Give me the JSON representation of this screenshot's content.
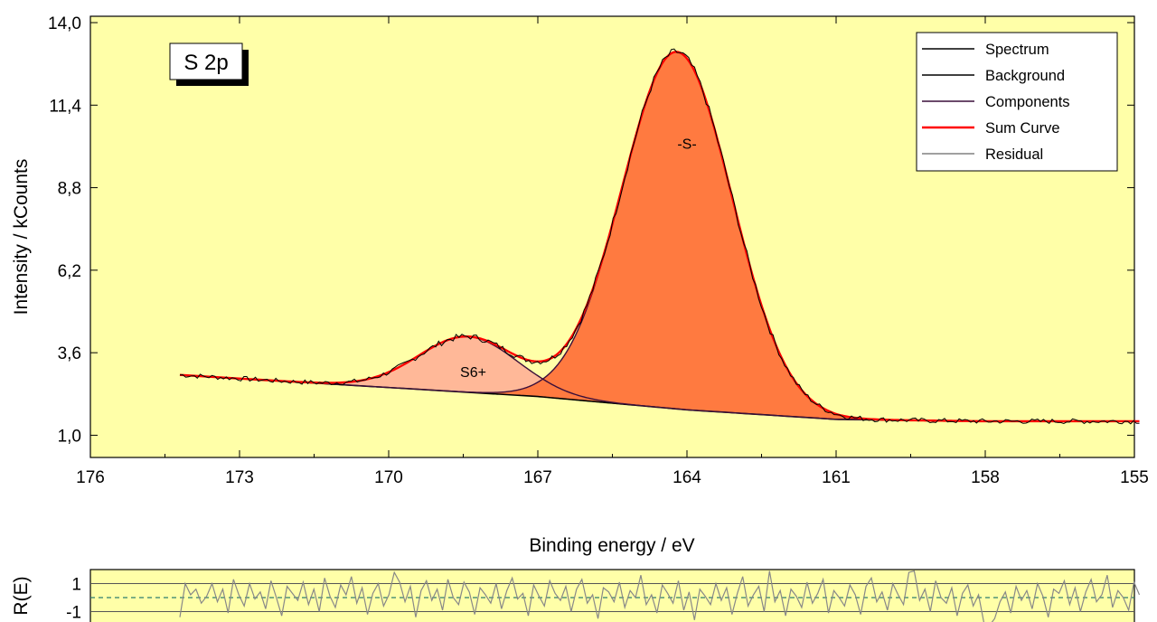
{
  "chart_data": [
    {
      "type": "line",
      "xlabel": "Binding energy / eV",
      "ylabel": "Intensity / kCounts",
      "xlim": [
        176,
        155
      ],
      "ylim": [
        0.3,
        14.2
      ],
      "x_reversed": true,
      "xticks": [
        176,
        173,
        170,
        167,
        164,
        161,
        158,
        155
      ],
      "xtick_labels": [
        "176",
        "173",
        "170",
        "167",
        "164",
        "161",
        "158",
        "155"
      ],
      "yticks": [
        1.0,
        3.6,
        6.2,
        8.8,
        11.4,
        14.0
      ],
      "ytick_labels": [
        "1,0",
        "3,6",
        "6,2",
        "8,8",
        "11,4",
        "14,0"
      ],
      "grid": false,
      "background_color": "#ffffa8",
      "legend_position": "top-right",
      "legend": [
        {
          "label": "Spectrum",
          "color": "#000000"
        },
        {
          "label": "Background",
          "color": "#000000"
        },
        {
          "label": "Components",
          "color": "#3a0f3a"
        },
        {
          "label": "Sum Curve",
          "color": "#ff0000"
        },
        {
          "label": "Residual",
          "color": "#808080"
        }
      ],
      "badge": "S 2p",
      "annotations": [
        {
          "text": "S6+",
          "x": 168.3,
          "y": 3.0
        },
        {
          "text": "-S-",
          "x": 164.0,
          "y": 10.2
        }
      ],
      "background": {
        "x_start": 174.2,
        "x_end": 154.9,
        "points": [
          [
            174.2,
            2.9
          ],
          [
            167,
            2.22
          ],
          [
            164,
            1.8
          ],
          [
            161,
            1.5
          ],
          [
            158,
            1.44
          ],
          [
            154.9,
            1.44
          ]
        ]
      },
      "components": [
        {
          "name": "S6+",
          "center": 168.4,
          "fwhm": 2.35,
          "height": 1.75,
          "fill": "#ffb898"
        },
        {
          "name": "-S-",
          "center": 164.2,
          "fwhm": 2.6,
          "height": 11.25,
          "fill": "#ff7a40"
        }
      ],
      "spectrum_noise_amplitude": 0.08
    },
    {
      "type": "line",
      "ylabel": "R(E)",
      "xlim": [
        176,
        155
      ],
      "ylim": [
        -2,
        2
      ],
      "yticks": [
        1,
        -1
      ],
      "ytick_labels": [
        "1",
        "-1"
      ],
      "x_start": 174.2,
      "x_end": 154.9,
      "reference_lines": [
        1,
        -1
      ],
      "zero_line": 0,
      "residual_values": [
        -1.4,
        1.0,
        0.2,
        0.6,
        -0.4,
        0.1,
        1.0,
        -0.3,
        0.6,
        -1.1,
        1.3,
        0.2,
        -0.6,
        1.0,
        -0.1,
        0.4,
        -0.8,
        1.2,
        0.0,
        -1.3,
        0.8,
        0.3,
        -0.2,
        1.1,
        -0.5,
        0.6,
        -1.0,
        1.4,
        0.1,
        -0.7,
        0.9,
        0.2,
        1.5,
        -0.4,
        0.7,
        -1.2,
        0.3,
        1.0,
        -0.6,
        0.2,
        1.8,
        1.1,
        -0.3,
        0.8,
        -1.4,
        0.5,
        1.2,
        -0.2,
        0.6,
        -0.9,
        1.3,
        0.0,
        -0.5,
        1.1,
        0.4,
        -1.2,
        0.7,
        0.2,
        -0.4,
        1.0,
        -0.8,
        0.5,
        1.4,
        -0.1,
        0.3,
        -1.3,
        0.9,
        0.1,
        -0.6,
        1.2,
        0.3,
        -0.2,
        0.8,
        -1.0,
        0.6,
        1.3,
        -0.4,
        0.2,
        -1.5,
        0.7,
        0.4,
        -0.3,
        1.1,
        -0.7,
        0.5,
        0.0,
        1.6,
        -0.5,
        0.2,
        -1.1,
        0.9,
        0.3,
        -0.4,
        1.2,
        -0.9,
        0.4,
        -1.6,
        0.6,
        0.1,
        -0.5,
        1.0,
        -0.2,
        0.7,
        -1.2,
        0.3,
        1.5,
        -0.6,
        0.2,
        0.8,
        -1.0,
        1.9,
        -0.3,
        0.5,
        -1.3,
        0.6,
        0.1,
        -0.7,
        1.1,
        -0.4,
        0.3,
        1.3,
        -1.1,
        0.5,
        0.0,
        -0.6,
        0.9,
        0.2,
        -1.2,
        0.8,
        1.4,
        -0.3,
        0.4,
        -0.9,
        1.0,
        0.2,
        -0.5,
        1.8,
        1.9,
        -0.2,
        0.6,
        -1.0,
        1.2,
        0.0,
        -0.4,
        0.7,
        -1.3,
        0.3,
        0.9,
        -0.6,
        0.2,
        -1.8,
        -2.0,
        -1.5,
        -0.3,
        0.4,
        -1.1,
        0.8,
        -0.2,
        0.5,
        -0.8,
        1.0,
        0.1,
        -1.4,
        0.6,
        0.3,
        1.2,
        -0.5,
        0.7,
        -1.0,
        0.4,
        1.3,
        -0.3,
        0.2,
        1.6,
        -0.7,
        0.5,
        0.0,
        -0.9,
        1.1,
        0.2
      ]
    }
  ]
}
